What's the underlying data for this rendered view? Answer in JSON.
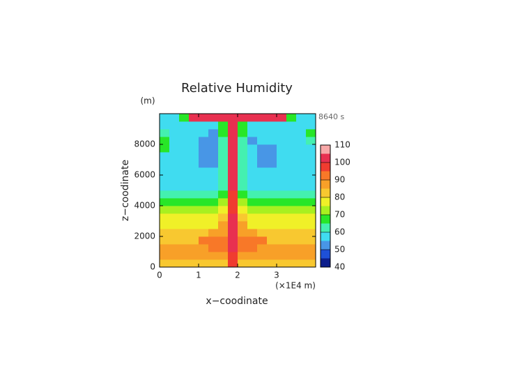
{
  "chart_data": {
    "type": "contour",
    "title": "Relative Humidity",
    "y_unit": "(m)",
    "y_label": "z−coodinate",
    "x_label": "x−coodinate",
    "x_unit": "(×1E4 m)",
    "time_label": "8640 s",
    "xlim": [
      0,
      4
    ],
    "ylim": [
      0,
      10000
    ],
    "xticks": [
      0,
      1,
      2,
      3
    ],
    "yticks": [
      0,
      2000,
      4000,
      6000,
      8000
    ],
    "x": [
      0.125,
      0.375,
      0.625,
      0.875,
      1.125,
      1.375,
      1.625,
      1.875,
      2.125,
      2.375,
      2.625,
      2.875,
      3.125,
      3.375,
      3.625,
      3.875
    ],
    "y": [
      250,
      750,
      1250,
      1750,
      2250,
      2750,
      3250,
      3750,
      4250,
      4750,
      5250,
      5750,
      6250,
      6750,
      7250,
      7750,
      8250,
      8750,
      9250,
      9750
    ],
    "z": [
      [
        84,
        84,
        84,
        84,
        84,
        84,
        80,
        95,
        80,
        84,
        84,
        84,
        84,
        84,
        84,
        84
      ],
      [
        87,
        87,
        87,
        87,
        87,
        87,
        88,
        97,
        88,
        87,
        87,
        87,
        87,
        87,
        87,
        87
      ],
      [
        88,
        88,
        88,
        88,
        88,
        92,
        92,
        100,
        92,
        92,
        88,
        88,
        88,
        88,
        88,
        88
      ],
      [
        83,
        83,
        83,
        83,
        90,
        90,
        90,
        101,
        90,
        90,
        90,
        83,
        83,
        83,
        83,
        83
      ],
      [
        82,
        82,
        82,
        82,
        82,
        88,
        88,
        101,
        88,
        88,
        82,
        82,
        82,
        82,
        82,
        82
      ],
      [
        78,
        78,
        78,
        78,
        78,
        78,
        85,
        100,
        85,
        78,
        78,
        78,
        78,
        78,
        78,
        78
      ],
      [
        76,
        76,
        76,
        76,
        76,
        76,
        82,
        100,
        82,
        76,
        76,
        76,
        76,
        76,
        76,
        76
      ],
      [
        72,
        72,
        72,
        72,
        72,
        72,
        78,
        99,
        78,
        72,
        72,
        72,
        72,
        72,
        72,
        72
      ],
      [
        67,
        67,
        67,
        67,
        67,
        67,
        72,
        99,
        72,
        67,
        67,
        67,
        67,
        67,
        67,
        67
      ],
      [
        62,
        62,
        62,
        62,
        62,
        62,
        68,
        99,
        68,
        62,
        62,
        62,
        62,
        62,
        62,
        62
      ],
      [
        58,
        58,
        58,
        58,
        58,
        58,
        64,
        100,
        64,
        58,
        58,
        58,
        58,
        58,
        58,
        58
      ],
      [
        57,
        57,
        57,
        57,
        57,
        57,
        62,
        100,
        62,
        57,
        57,
        57,
        57,
        57,
        57,
        57
      ],
      [
        57,
        57,
        57,
        57,
        57,
        57,
        62,
        101,
        62,
        57,
        57,
        57,
        57,
        57,
        57,
        57
      ],
      [
        56,
        56,
        56,
        56,
        53,
        53,
        62,
        101,
        62,
        56,
        53,
        53,
        56,
        56,
        56,
        56
      ],
      [
        57,
        57,
        57,
        57,
        52,
        52,
        62,
        102,
        62,
        57,
        52,
        52,
        57,
        57,
        57,
        57
      ],
      [
        66,
        57,
        57,
        57,
        52,
        52,
        63,
        102,
        63,
        57,
        52,
        52,
        57,
        57,
        57,
        57
      ],
      [
        66,
        57,
        57,
        57,
        53,
        53,
        64,
        102,
        64,
        53,
        57,
        57,
        57,
        57,
        57,
        63
      ],
      [
        64,
        57,
        57,
        57,
        57,
        54,
        65,
        101,
        65,
        57,
        57,
        57,
        57,
        57,
        57,
        66
      ],
      [
        58,
        58,
        58,
        58,
        58,
        58,
        66,
        100,
        66,
        58,
        58,
        58,
        58,
        58,
        58,
        58
      ],
      [
        58,
        58,
        68,
        100,
        100,
        100,
        100,
        100,
        100,
        100,
        100,
        100,
        100,
        68,
        58,
        58
      ]
    ],
    "levels": [
      40,
      45,
      50,
      55,
      60,
      65,
      70,
      75,
      80,
      85,
      90,
      95,
      100,
      105,
      110
    ],
    "colors": [
      "#0c1e8c",
      "#1e50d8",
      "#4896e6",
      "#40dcf0",
      "#44f0b0",
      "#28e628",
      "#a8f020",
      "#f0f028",
      "#f8c830",
      "#f8a028",
      "#f87828",
      "#f03c30",
      "#e83050",
      "#f8a8a8"
    ],
    "cbar_ticks": [
      40,
      50,
      60,
      70,
      80,
      90,
      100,
      110
    ]
  }
}
